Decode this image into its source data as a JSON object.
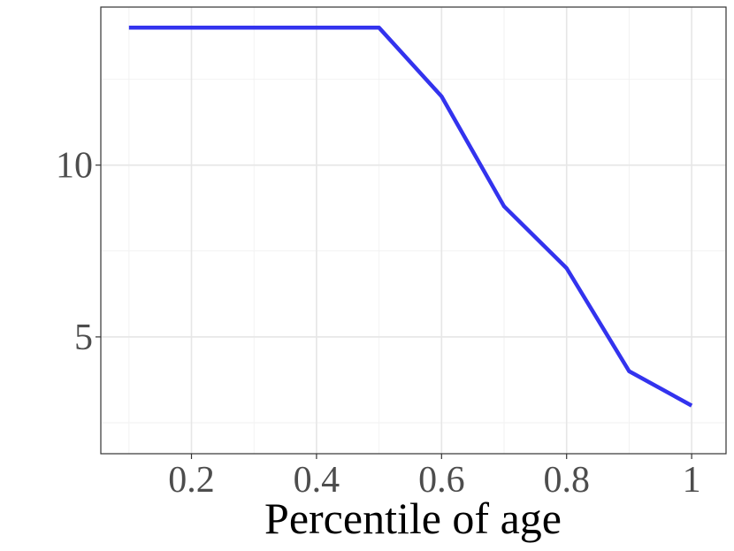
{
  "chart_data": {
    "type": "line",
    "title": "",
    "xlabel": "Percentile of age",
    "ylabel": "",
    "x": [
      0.1,
      0.2,
      0.3,
      0.4,
      0.5,
      0.6,
      0.7,
      0.8,
      0.9,
      1.0
    ],
    "series": [
      {
        "color": "#3333ee",
        "values": [
          14,
          14,
          14,
          14,
          14,
          12,
          8.8,
          7,
          4,
          3
        ]
      }
    ],
    "xlim": [
      0.055,
      1.055
    ],
    "ylim": [
      1.6,
      14.6
    ],
    "xticks": [
      0.2,
      0.4,
      0.6,
      0.8,
      1.0
    ],
    "xtick_labels": [
      "0.2",
      "0.4",
      "0.6",
      "0.8",
      "1"
    ],
    "yticks": [
      5,
      10
    ],
    "ytick_labels": [
      "5",
      "10"
    ],
    "grid": true,
    "legend": "none"
  }
}
